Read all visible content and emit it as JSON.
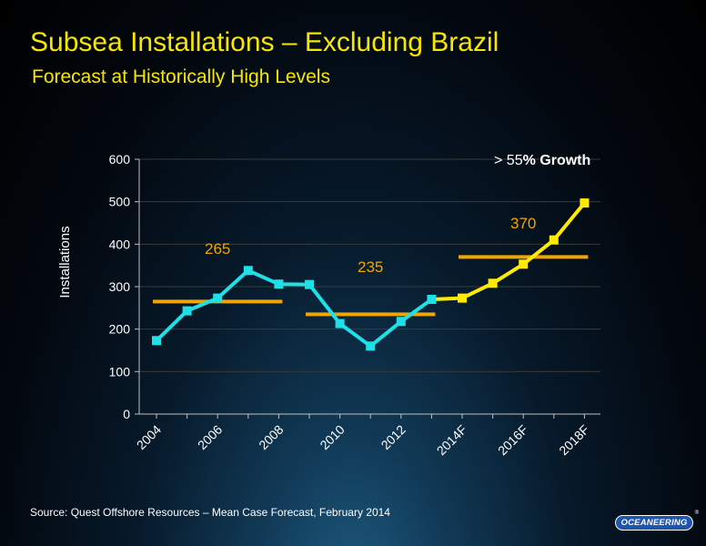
{
  "slide": {
    "title": "Subsea Installations – Excluding Brazil",
    "subtitle": "Forecast at Historically High Levels",
    "source": "Source:  Quest Offshore Resources – Mean Case Forecast, February 2014",
    "logo_text": "OCEANEERING",
    "logo_mark": "®"
  },
  "colors": {
    "title": "#f7e600",
    "historical": "#1ee0e6",
    "forecast": "#ffea00",
    "average": "#f0a500",
    "average_label": "#f0a500",
    "axis_text": "#ffffff",
    "gridline": "#3a3a3a"
  },
  "chart_data": {
    "type": "line",
    "title": "",
    "xlabel": "",
    "ylabel": "Installations",
    "ylim": [
      0,
      600
    ],
    "yticks": [
      0,
      100,
      200,
      300,
      400,
      500,
      600
    ],
    "grid": true,
    "x": [
      "2004",
      "2005",
      "2006",
      "2007",
      "2008",
      "2009",
      "2010",
      "2011",
      "2012",
      "2013",
      "2014F",
      "2015F",
      "2016F",
      "2017F",
      "2018F"
    ],
    "xtick_labels": [
      "2004",
      "2006",
      "2008",
      "2010",
      "2012",
      "2014F",
      "2016F",
      "2018F"
    ],
    "series": [
      {
        "segment": "historical",
        "x": [
          "2004",
          "2005",
          "2006",
          "2007",
          "2008",
          "2009",
          "2010",
          "2011",
          "2012",
          "2013"
        ],
        "values": [
          173,
          243,
          273,
          338,
          306,
          305,
          213,
          160,
          218,
          270
        ]
      },
      {
        "segment": "forecast",
        "x": [
          "2013",
          "2014F",
          "2015F",
          "2016F",
          "2017F",
          "2018F"
        ],
        "values": [
          270,
          273,
          308,
          353,
          410,
          497
        ]
      }
    ],
    "averages": [
      {
        "label": "265",
        "value": 265,
        "x_start": "2004",
        "x_end": "2008"
      },
      {
        "label": "235",
        "value": 235,
        "x_start": "2009",
        "x_end": "2013"
      },
      {
        "label": "370",
        "value": 370,
        "x_start": "2014F",
        "x_end": "2018F"
      }
    ],
    "annotation": {
      "prefix": "> 55",
      "bold": "% Growth"
    }
  }
}
